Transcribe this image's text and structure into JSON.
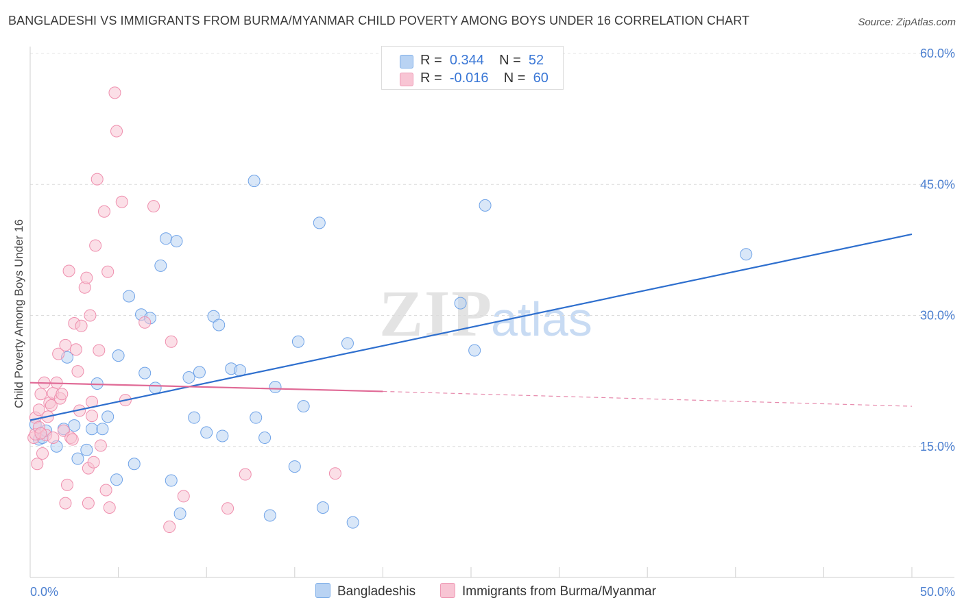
{
  "title": "BANGLADESHI VS IMMIGRANTS FROM BURMA/MYANMAR CHILD POVERTY AMONG BOYS UNDER 16 CORRELATION CHART",
  "source": "Source: ZipAtlas.com",
  "watermark": {
    "zip": "ZIP",
    "atlas": "atlas"
  },
  "legend": {
    "rows": [
      {
        "r_label": "R =",
        "r_value": "0.344",
        "n_label": "N =",
        "n_value": "52",
        "color": "#a9c8f0"
      },
      {
        "r_label": "R =",
        "r_value": "-0.016",
        "n_label": "N =",
        "n_value": "60",
        "color": "#f5b8cb"
      }
    ]
  },
  "bottom_legend": [
    {
      "label": "Bangladeshis",
      "color": "#b9d3f3"
    },
    {
      "label": "Immigrants from Burma/Myanmar",
      "color": "#f8c5d4"
    }
  ],
  "chart_data": {
    "type": "scatter",
    "title": "BANGLADESHI VS IMMIGRANTS FROM BURMA/MYANMAR CHILD POVERTY AMONG BOYS UNDER 16 CORRELATION CHART",
    "xlabel": "",
    "ylabel": "Child Poverty Among Boys Under 16",
    "xlim": [
      0,
      50
    ],
    "ylim": [
      0,
      60
    ],
    "x_tick_labels": [
      "0.0%",
      "50.0%"
    ],
    "y_ticks": [
      15,
      30,
      45,
      60
    ],
    "y_tick_labels": [
      "15.0%",
      "30.0%",
      "45.0%",
      "60.0%"
    ],
    "grid": "horizontal dashed",
    "legend_position": "top-center",
    "series": [
      {
        "name": "Bangladeshis",
        "color": "#6fa3e8",
        "fill": "#b9d3f3",
        "trend": {
          "x": [
            0,
            50
          ],
          "y": [
            18.0,
            39.3
          ],
          "style": "solid",
          "color": "#2e6fce"
        },
        "points": [
          [
            0.3,
            17.5
          ],
          [
            0.5,
            15.8
          ],
          [
            0.7,
            16.0
          ],
          [
            0.9,
            16.8
          ],
          [
            1.5,
            15.0
          ],
          [
            1.9,
            17.0
          ],
          [
            2.1,
            25.2
          ],
          [
            2.5,
            17.4
          ],
          [
            2.7,
            13.6
          ],
          [
            3.2,
            14.6
          ],
          [
            3.5,
            17.0
          ],
          [
            3.8,
            22.2
          ],
          [
            4.1,
            17.0
          ],
          [
            4.4,
            18.4
          ],
          [
            4.9,
            11.2
          ],
          [
            5.0,
            25.4
          ],
          [
            5.6,
            32.2
          ],
          [
            5.9,
            13.0
          ],
          [
            6.3,
            30.1
          ],
          [
            6.5,
            23.4
          ],
          [
            6.8,
            29.7
          ],
          [
            7.1,
            21.7
          ],
          [
            7.4,
            35.7
          ],
          [
            7.7,
            38.8
          ],
          [
            8.0,
            11.1
          ],
          [
            8.3,
            38.5
          ],
          [
            8.5,
            7.3
          ],
          [
            9.0,
            22.9
          ],
          [
            9.3,
            18.3
          ],
          [
            9.6,
            23.5
          ],
          [
            10.0,
            16.6
          ],
          [
            10.4,
            29.9
          ],
          [
            10.7,
            28.9
          ],
          [
            10.9,
            16.2
          ],
          [
            11.4,
            23.9
          ],
          [
            11.9,
            23.7
          ],
          [
            12.7,
            45.4
          ],
          [
            12.8,
            18.3
          ],
          [
            13.3,
            16.0
          ],
          [
            13.6,
            7.1
          ],
          [
            13.9,
            21.8
          ],
          [
            15.0,
            12.7
          ],
          [
            15.2,
            27.0
          ],
          [
            15.5,
            19.6
          ],
          [
            16.4,
            40.6
          ],
          [
            16.6,
            8.0
          ],
          [
            18.0,
            26.8
          ],
          [
            18.3,
            6.3
          ],
          [
            24.4,
            31.4
          ],
          [
            25.2,
            26.0
          ],
          [
            25.8,
            42.6
          ],
          [
            40.6,
            37.0
          ]
        ]
      },
      {
        "name": "Immigrants from Burma/Myanmar",
        "color": "#ef8fae",
        "fill": "#f8c5d4",
        "trend": {
          "x": [
            0,
            20,
            50
          ],
          "y": [
            22.3,
            21.3,
            19.6
          ],
          "style": "solid to x=20, dashed after",
          "color": "#e06a96"
        },
        "points": [
          [
            0.2,
            16.0
          ],
          [
            0.3,
            16.4
          ],
          [
            0.3,
            18.3
          ],
          [
            0.4,
            13.0
          ],
          [
            0.5,
            17.2
          ],
          [
            0.5,
            19.2
          ],
          [
            0.6,
            21.0
          ],
          [
            0.7,
            14.2
          ],
          [
            0.8,
            22.3
          ],
          [
            0.9,
            16.3
          ],
          [
            1.0,
            18.4
          ],
          [
            1.1,
            20.0
          ],
          [
            1.2,
            19.7
          ],
          [
            1.3,
            21.1
          ],
          [
            1.3,
            16.0
          ],
          [
            1.5,
            22.3
          ],
          [
            1.6,
            25.6
          ],
          [
            1.7,
            20.5
          ],
          [
            1.8,
            21.0
          ],
          [
            1.9,
            16.8
          ],
          [
            2.0,
            26.6
          ],
          [
            2.0,
            8.5
          ],
          [
            2.1,
            10.6
          ],
          [
            2.2,
            35.1
          ],
          [
            2.3,
            16.0
          ],
          [
            2.4,
            15.8
          ],
          [
            2.5,
            29.1
          ],
          [
            2.6,
            26.1
          ],
          [
            2.7,
            23.6
          ],
          [
            2.8,
            19.1
          ],
          [
            2.9,
            28.8
          ],
          [
            3.1,
            33.2
          ],
          [
            3.2,
            34.3
          ],
          [
            3.3,
            8.5
          ],
          [
            3.3,
            12.5
          ],
          [
            3.4,
            30.0
          ],
          [
            3.5,
            20.1
          ],
          [
            3.5,
            18.5
          ],
          [
            3.6,
            13.2
          ],
          [
            3.7,
            38.0
          ],
          [
            3.8,
            45.6
          ],
          [
            3.9,
            26.0
          ],
          [
            4.0,
            15.1
          ],
          [
            4.2,
            41.9
          ],
          [
            4.3,
            10.0
          ],
          [
            4.4,
            35.0
          ],
          [
            4.5,
            8.0
          ],
          [
            4.8,
            55.5
          ],
          [
            4.9,
            51.1
          ],
          [
            5.2,
            43.0
          ],
          [
            5.4,
            20.3
          ],
          [
            6.5,
            29.2
          ],
          [
            7.0,
            42.5
          ],
          [
            7.9,
            5.8
          ],
          [
            8.0,
            27.0
          ],
          [
            8.7,
            9.3
          ],
          [
            11.2,
            7.9
          ],
          [
            12.2,
            11.8
          ],
          [
            17.3,
            11.9
          ],
          [
            0.6,
            16.5
          ]
        ]
      }
    ]
  }
}
